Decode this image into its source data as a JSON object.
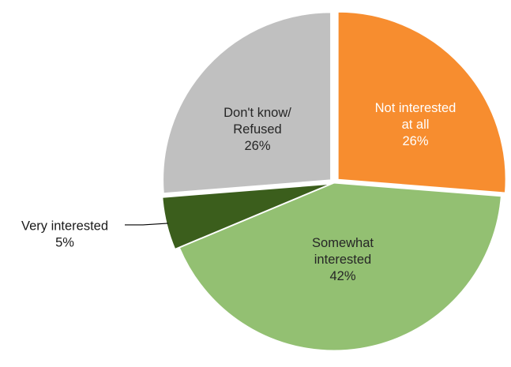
{
  "chart_data": {
    "type": "pie",
    "title": "",
    "slices": [
      {
        "label_lines": [
          "Not interested",
          "at all"
        ],
        "value": 26,
        "value_label": "26%",
        "color": "#f78d2f",
        "text_color": "#ffffff"
      },
      {
        "label_lines": [
          "Somewhat",
          "interested"
        ],
        "value": 42,
        "value_label": "42%",
        "color": "#93c072",
        "text_color": "#262626"
      },
      {
        "label_lines": [
          "Very interested"
        ],
        "value": 5,
        "value_label": "5%",
        "color": "#3b5e1c",
        "text_color": "#1a1a1a"
      },
      {
        "label_lines": [
          "Don't know/",
          "Refused"
        ],
        "value": 26,
        "value_label": "26%",
        "color": "#c0c0c0",
        "text_color": "#262626"
      }
    ]
  }
}
